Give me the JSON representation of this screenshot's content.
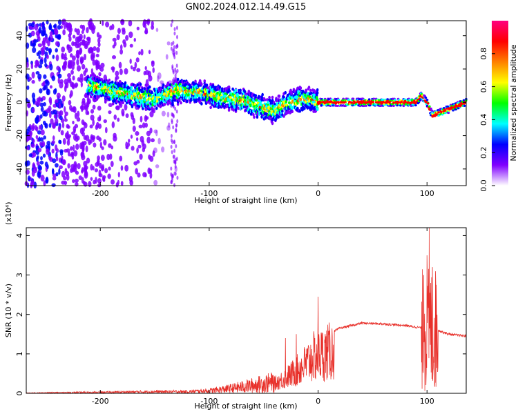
{
  "title": "GN02.2024.012.14.49.G15",
  "chart_data": [
    {
      "type": "heatmap",
      "xlabel": "Height of straight line (km)",
      "ylabel": "Frequency (Hz)",
      "xlim": [
        -268,
        136
      ],
      "ylim": [
        -50,
        49
      ],
      "xticks": [
        -200,
        -100,
        0,
        100
      ],
      "yticks": [
        -40,
        -20,
        0,
        20,
        40
      ],
      "colorbar": {
        "label": "Normalized spectral amplitude",
        "range": [
          0.0,
          1.0
        ],
        "ticks": [
          0.0,
          0.2,
          0.4,
          0.6,
          0.8
        ],
        "tick_labels": [
          "0.0",
          "0.2",
          "0.4",
          "0.6",
          "0.8"
        ],
        "colors": [
          "#ffffff",
          "#8000ff",
          "#0000ff",
          "#00ffff",
          "#00ff00",
          "#ffff00",
          "#ff8000",
          "#ff0000",
          "#ff0080"
        ]
      },
      "ridge": {
        "x": [
          -210,
          -190,
          -170,
          -150,
          -130,
          -110,
          -90,
          -70,
          -50,
          -40,
          -30,
          -20,
          -10,
          0,
          20,
          60,
          90,
          95,
          100,
          105,
          136
        ],
        "y": [
          10,
          7,
          4,
          2,
          7,
          6,
          3,
          1,
          -3,
          -5,
          -1,
          1,
          2,
          0,
          0,
          0,
          0,
          4,
          0,
          -8,
          0
        ]
      },
      "noise_region": {
        "x": [
          -268,
          -200
        ],
        "y": [
          -50,
          49
        ]
      }
    },
    {
      "type": "line",
      "xlabel": "Height of straight line (km)",
      "ylabel": "SNR (10 * v/v)",
      "y_multiplier": "(x10⁴)",
      "xlim": [
        -268,
        136
      ],
      "ylim": [
        0,
        4.2
      ],
      "xticks": [
        -200,
        -100,
        0,
        100
      ],
      "yticks": [
        0,
        1,
        2,
        3,
        4
      ],
      "series_color": "#e8302a",
      "envelope": {
        "x": [
          -268,
          -200,
          -150,
          -120,
          -100,
          -80,
          -60,
          -40,
          -30,
          -20,
          -10,
          -5,
          0,
          10,
          20,
          40,
          60,
          80,
          95,
          100,
          105,
          110,
          120,
          136
        ],
        "y": [
          0.01,
          0.03,
          0.05,
          0.05,
          0.08,
          0.15,
          0.25,
          0.35,
          0.55,
          0.8,
          1.1,
          1.3,
          1.35,
          1.5,
          1.65,
          1.78,
          1.76,
          1.72,
          1.66,
          1.9,
          1.7,
          1.6,
          1.5,
          1.45
        ]
      },
      "spikes": [
        {
          "x": 0,
          "y": 2.45
        },
        {
          "x": -30,
          "y": 1.4
        },
        {
          "x": -20,
          "y": 1.5
        },
        {
          "x": 97,
          "y": 3.0
        },
        {
          "x": 100,
          "y": 3.5
        },
        {
          "x": 102,
          "y": 4.2
        },
        {
          "x": 105,
          "y": 3.2
        },
        {
          "x": 108,
          "y": 2.8
        }
      ]
    }
  ]
}
